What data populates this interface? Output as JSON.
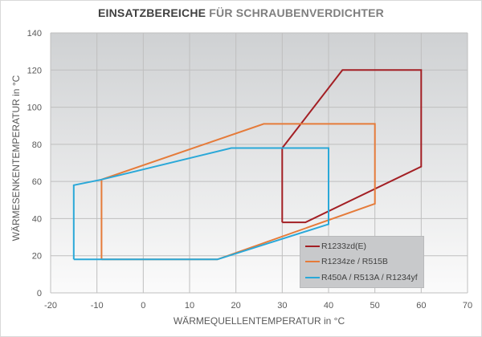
{
  "title": {
    "part1": "EINSATZBEREICHE",
    "part2": " FÜR SCHRAUBENVERDICHTER"
  },
  "axes": {
    "xlabel": "WÄRMEQUELLENTEMPERATUR in °C",
    "ylabel": "WÄRMESENKENTEMPERATUR in °C",
    "xticks": [
      "-20",
      "-10",
      "0",
      "10",
      "20",
      "30",
      "40",
      "50",
      "60",
      "70"
    ],
    "yticks": [
      "0",
      "20",
      "40",
      "60",
      "80",
      "100",
      "120",
      "140"
    ]
  },
  "legend": [
    {
      "label": "R1233zd(E)",
      "color": "#a31f24"
    },
    {
      "label": "R1234ze / R515B",
      "color": "#e57b3a"
    },
    {
      "label": "R450A / R513A / R1234yf",
      "color": "#2aa8d8"
    }
  ],
  "chart_data": {
    "type": "line",
    "title": "EINSATZBEREICHE FÜR SCHRAUBENVERDICHTER",
    "xlabel": "WÄRMEQUELLENTEMPERATUR in °C",
    "ylabel": "WÄRMESENKENTEMPERATUR in °C",
    "xlim": [
      -20,
      70
    ],
    "ylim": [
      0,
      140
    ],
    "grid": true,
    "legend_position": "lower right inside",
    "series": [
      {
        "name": "R1233zd(E)",
        "color": "#a31f24",
        "points": [
          [
            30,
            38
          ],
          [
            30,
            78
          ],
          [
            43,
            120
          ],
          [
            60,
            120
          ],
          [
            60,
            68
          ],
          [
            35,
            38
          ],
          [
            30,
            38
          ]
        ]
      },
      {
        "name": "R1234ze / R515B",
        "color": "#e57b3a",
        "points": [
          [
            -9,
            18
          ],
          [
            -9,
            61
          ],
          [
            26,
            91
          ],
          [
            50,
            91
          ],
          [
            50,
            48
          ],
          [
            16,
            18
          ],
          [
            -9,
            18
          ]
        ]
      },
      {
        "name": "R450A / R513A / R1234yf",
        "color": "#2aa8d8",
        "points": [
          [
            -15,
            18
          ],
          [
            -15,
            58
          ],
          [
            -9,
            61
          ],
          [
            19,
            78
          ],
          [
            40,
            78
          ],
          [
            40,
            37
          ],
          [
            16,
            18
          ],
          [
            -15,
            18
          ]
        ]
      }
    ]
  }
}
